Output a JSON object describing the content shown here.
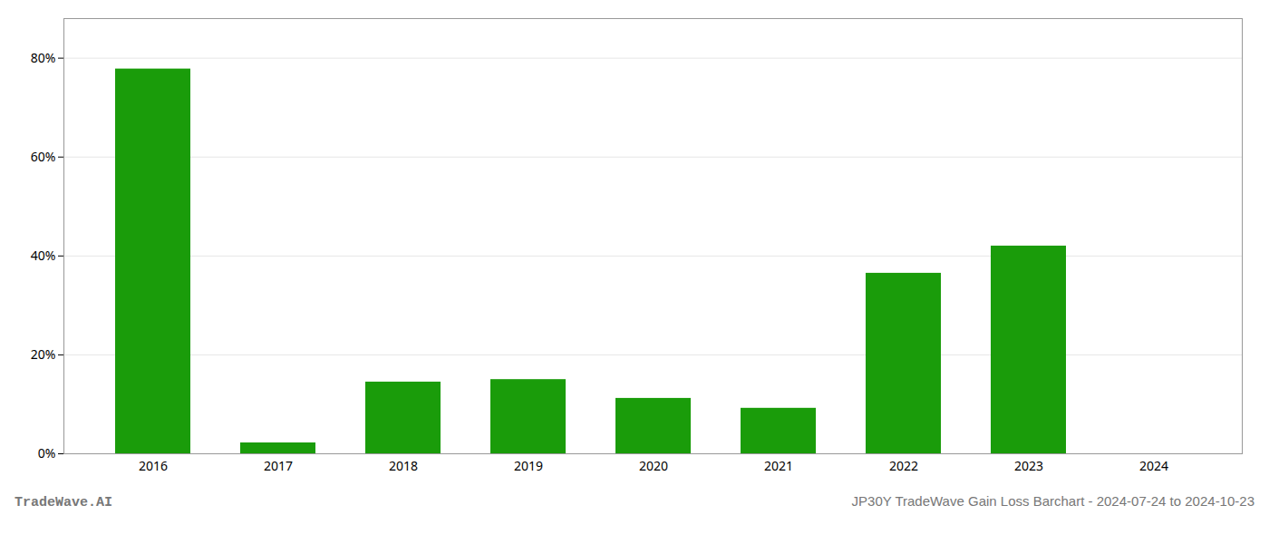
{
  "chart_data": {
    "type": "bar",
    "title": "JP30Y TradeWave Gain Loss Barchart - 2024-07-24 to 2024-10-23",
    "annotations": [
      "TradeWave.AI"
    ],
    "categories": [
      "2016",
      "2017",
      "2018",
      "2019",
      "2020",
      "2021",
      "2022",
      "2023",
      "2024"
    ],
    "values": [
      0.778,
      0.022,
      0.145,
      0.15,
      0.112,
      0.092,
      0.365,
      0.42,
      0.0
    ],
    "color": "#1a9c0a",
    "ylim": [
      0,
      0.88
    ],
    "yticks": [
      {
        "value": 0.0,
        "label": "0%"
      },
      {
        "value": 0.2,
        "label": "20%"
      },
      {
        "value": 0.4,
        "label": "40%"
      },
      {
        "value": 0.6,
        "label": "60%"
      },
      {
        "value": 0.8,
        "label": "80%"
      }
    ],
    "grid": true
  }
}
